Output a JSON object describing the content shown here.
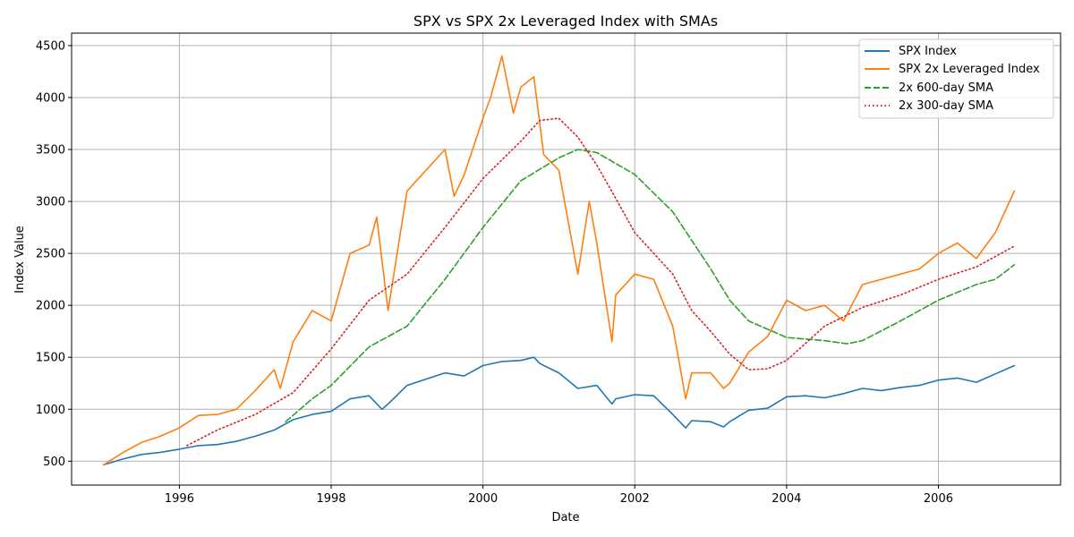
{
  "chart_data": {
    "type": "line",
    "title": "SPX vs SPX 2x Leveraged Index with SMAs",
    "xlabel": "Date",
    "ylabel": "Index Value",
    "xlim": [
      1994.58,
      2007.61
    ],
    "ylim": [
      270,
      4620
    ],
    "x_ticks": [
      1996,
      1998,
      2000,
      2002,
      2004,
      2006
    ],
    "x_tick_labels": [
      "1996",
      "1998",
      "2000",
      "2002",
      "2004",
      "2006"
    ],
    "y_ticks": [
      500,
      1000,
      1500,
      2000,
      2500,
      3000,
      3500,
      4000,
      4500
    ],
    "y_tick_labels": [
      "500",
      "1000",
      "1500",
      "2000",
      "2500",
      "3000",
      "3500",
      "4000",
      "4500"
    ],
    "grid": true,
    "legend_position": "top-right",
    "series": [
      {
        "name": "SPX Index",
        "color": "#1f77b4",
        "style": "solid",
        "x": [
          1995.0,
          1995.25,
          1995.5,
          1995.75,
          1996.0,
          1996.25,
          1996.5,
          1996.75,
          1997.0,
          1997.25,
          1997.5,
          1997.75,
          1998.0,
          1998.25,
          1998.5,
          1998.67,
          1998.75,
          1999.0,
          1999.25,
          1999.5,
          1999.75,
          2000.0,
          2000.25,
          2000.5,
          2000.67,
          2000.75,
          2001.0,
          2001.25,
          2001.5,
          2001.7,
          2001.75,
          2002.0,
          2002.25,
          2002.5,
          2002.67,
          2002.75,
          2003.0,
          2003.17,
          2003.25,
          2003.5,
          2003.75,
          2004.0,
          2004.25,
          2004.5,
          2004.75,
          2005.0,
          2005.25,
          2005.5,
          2005.75,
          2006.0,
          2006.25,
          2006.5,
          2006.75,
          2007.0
        ],
        "y": [
          465,
          520,
          565,
          585,
          615,
          650,
          660,
          690,
          740,
          800,
          900,
          950,
          980,
          1100,
          1130,
          1000,
          1050,
          1230,
          1290,
          1350,
          1320,
          1420,
          1460,
          1470,
          1500,
          1440,
          1350,
          1200,
          1230,
          1050,
          1100,
          1140,
          1130,
          950,
          820,
          890,
          880,
          830,
          880,
          990,
          1010,
          1120,
          1130,
          1110,
          1150,
          1200,
          1180,
          1210,
          1230,
          1280,
          1300,
          1260,
          1340,
          1420
        ]
      },
      {
        "name": "SPX 2x Leveraged Index",
        "color": "#ff7f0e",
        "style": "solid",
        "x": [
          1995.0,
          1995.25,
          1995.5,
          1995.75,
          1996.0,
          1996.25,
          1996.5,
          1996.75,
          1997.0,
          1997.25,
          1997.33,
          1997.5,
          1997.75,
          1998.0,
          1998.25,
          1998.5,
          1998.6,
          1998.75,
          1999.0,
          1999.25,
          1999.5,
          1999.62,
          1999.75,
          2000.0,
          2000.1,
          2000.25,
          2000.4,
          2000.5,
          2000.67,
          2000.8,
          2001.0,
          2001.25,
          2001.4,
          2001.5,
          2001.7,
          2001.75,
          2002.0,
          2002.25,
          2002.5,
          2002.67,
          2002.75,
          2003.0,
          2003.17,
          2003.25,
          2003.5,
          2003.75,
          2004.0,
          2004.25,
          2004.5,
          2004.75,
          2005.0,
          2005.25,
          2005.5,
          2005.75,
          2006.0,
          2006.25,
          2006.5,
          2006.75,
          2007.0
        ],
        "y": [
          465,
          580,
          680,
          740,
          820,
          940,
          950,
          1000,
          1180,
          1380,
          1200,
          1650,
          1950,
          1850,
          2500,
          2580,
          2850,
          1950,
          3100,
          3300,
          3500,
          3050,
          3250,
          3800,
          4000,
          4400,
          3850,
          4100,
          4200,
          3450,
          3300,
          2300,
          3000,
          2600,
          1650,
          2100,
          2300,
          2250,
          1800,
          1100,
          1350,
          1350,
          1200,
          1250,
          1550,
          1700,
          2050,
          1950,
          2000,
          1850,
          2200,
          2250,
          2300,
          2350,
          2500,
          2600,
          2450,
          2700,
          3100
        ]
      },
      {
        "name": "2x 600-day SMA",
        "color": "#2ca02c",
        "style": "dashed",
        "x": [
          1997.4,
          1997.75,
          1998.0,
          1998.5,
          1999.0,
          1999.5,
          2000.0,
          2000.5,
          2001.0,
          2001.25,
          2001.5,
          2002.0,
          2002.5,
          2003.0,
          2003.25,
          2003.5,
          2004.0,
          2004.5,
          2004.8,
          2005.0,
          2005.5,
          2006.0,
          2006.5,
          2006.75,
          2007.0
        ],
        "y": [
          880,
          1100,
          1230,
          1600,
          1800,
          2250,
          2750,
          3200,
          3420,
          3500,
          3470,
          3260,
          2900,
          2350,
          2050,
          1850,
          1690,
          1660,
          1630,
          1660,
          1850,
          2050,
          2200,
          2250,
          2390
        ]
      },
      {
        "name": "2x 300-day SMA",
        "color": "#d62728",
        "style": "dotted",
        "x": [
          1996.1,
          1996.5,
          1997.0,
          1997.5,
          1998.0,
          1998.5,
          1999.0,
          1999.5,
          2000.0,
          2000.5,
          2000.75,
          2001.0,
          2001.25,
          2001.5,
          2001.75,
          2002.0,
          2002.5,
          2002.75,
          2003.0,
          2003.25,
          2003.5,
          2003.75,
          2004.0,
          2004.5,
          2005.0,
          2005.5,
          2006.0,
          2006.5,
          2007.0
        ],
        "y": [
          650,
          800,
          950,
          1160,
          1580,
          2050,
          2300,
          2750,
          3220,
          3580,
          3780,
          3800,
          3620,
          3350,
          3030,
          2700,
          2300,
          1950,
          1750,
          1530,
          1380,
          1390,
          1470,
          1800,
          1980,
          2100,
          2250,
          2370,
          2570
        ]
      }
    ]
  }
}
